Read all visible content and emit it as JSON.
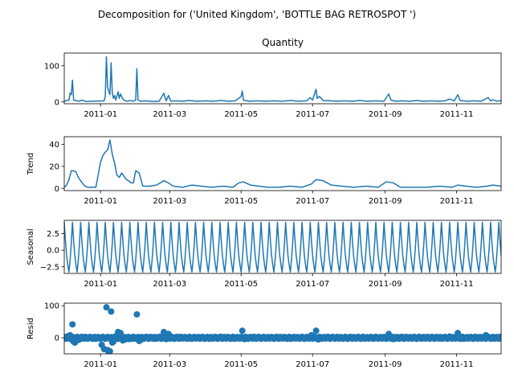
{
  "chart_data": {
    "type": "line",
    "suptitle": "Decomposition for ('United Kingdom', 'BOTTLE BAG RETROSPOT ')",
    "x_range": [
      "2010-12-01",
      "2011-12-09"
    ],
    "x_ticks": [
      "2011-01",
      "2011-03",
      "2011-05",
      "2011-07",
      "2011-09",
      "2011-11"
    ],
    "panels": [
      {
        "key": "observed",
        "title": "Quantity",
        "ylabel": "",
        "kind": "line",
        "ylim": [
          -5,
          135
        ],
        "yticks": [
          0,
          100
        ],
        "ytick_labels": [
          "0",
          "100"
        ],
        "points": [
          [
            "2010-12-01",
            2
          ],
          [
            "2010-12-03",
            4
          ],
          [
            "2010-12-05",
            5
          ],
          [
            "2010-12-06",
            25
          ],
          [
            "2010-12-07",
            20
          ],
          [
            "2010-12-08",
            60
          ],
          [
            "2010-12-09",
            5
          ],
          [
            "2010-12-12",
            3
          ],
          [
            "2010-12-14",
            2
          ],
          [
            "2010-12-16",
            5
          ],
          [
            "2010-12-19",
            2
          ],
          [
            "2010-12-21",
            1
          ],
          [
            "2010-12-23",
            2
          ],
          [
            "2011-01-04",
            3
          ],
          [
            "2011-01-05",
            15
          ],
          [
            "2011-01-06",
            125
          ],
          [
            "2011-01-07",
            40
          ],
          [
            "2011-01-09",
            20
          ],
          [
            "2011-01-10",
            108
          ],
          [
            "2011-01-11",
            25
          ],
          [
            "2011-01-12",
            10
          ],
          [
            "2011-01-13",
            18
          ],
          [
            "2011-01-14",
            5
          ],
          [
            "2011-01-16",
            28
          ],
          [
            "2011-01-17",
            10
          ],
          [
            "2011-01-18",
            22
          ],
          [
            "2011-01-20",
            8
          ],
          [
            "2011-01-22",
            3
          ],
          [
            "2011-01-24",
            2
          ],
          [
            "2011-01-26",
            4
          ],
          [
            "2011-01-29",
            2
          ],
          [
            "2011-01-31",
            5
          ],
          [
            "2011-02-01",
            92
          ],
          [
            "2011-02-02",
            5
          ],
          [
            "2011-02-04",
            2
          ],
          [
            "2011-02-08",
            3
          ],
          [
            "2011-02-12",
            2
          ],
          [
            "2011-02-15",
            1
          ],
          [
            "2011-02-20",
            2
          ],
          [
            "2011-02-24",
            24
          ],
          [
            "2011-02-26",
            3
          ],
          [
            "2011-02-28",
            18
          ],
          [
            "2011-03-02",
            2
          ],
          [
            "2011-03-06",
            3
          ],
          [
            "2011-03-12",
            2
          ],
          [
            "2011-03-18",
            4
          ],
          [
            "2011-03-24",
            2
          ],
          [
            "2011-04-01",
            3
          ],
          [
            "2011-04-07",
            2
          ],
          [
            "2011-04-14",
            4
          ],
          [
            "2011-04-20",
            2
          ],
          [
            "2011-04-26",
            3
          ],
          [
            "2011-05-01",
            15
          ],
          [
            "2011-05-02",
            30
          ],
          [
            "2011-05-03",
            5
          ],
          [
            "2011-05-08",
            2
          ],
          [
            "2011-05-15",
            3
          ],
          [
            "2011-05-22",
            2
          ],
          [
            "2011-05-29",
            3
          ],
          [
            "2011-06-05",
            2
          ],
          [
            "2011-06-12",
            4
          ],
          [
            "2011-06-19",
            2
          ],
          [
            "2011-06-26",
            3
          ],
          [
            "2011-06-29",
            12
          ],
          [
            "2011-07-01",
            5
          ],
          [
            "2011-07-04",
            35
          ],
          [
            "2011-07-05",
            10
          ],
          [
            "2011-07-07",
            15
          ],
          [
            "2011-07-10",
            4
          ],
          [
            "2011-07-16",
            3
          ],
          [
            "2011-07-22",
            2
          ],
          [
            "2011-07-28",
            3
          ],
          [
            "2011-08-04",
            2
          ],
          [
            "2011-08-10",
            4
          ],
          [
            "2011-08-17",
            2
          ],
          [
            "2011-08-24",
            3
          ],
          [
            "2011-08-31",
            2
          ],
          [
            "2011-09-04",
            22
          ],
          [
            "2011-09-06",
            5
          ],
          [
            "2011-09-10",
            2
          ],
          [
            "2011-09-16",
            3
          ],
          [
            "2011-09-22",
            2
          ],
          [
            "2011-09-28",
            4
          ],
          [
            "2011-10-04",
            2
          ],
          [
            "2011-10-10",
            3
          ],
          [
            "2011-10-16",
            2
          ],
          [
            "2011-10-22",
            3
          ],
          [
            "2011-10-26",
            8
          ],
          [
            "2011-10-30",
            3
          ],
          [
            "2011-11-02",
            20
          ],
          [
            "2011-11-04",
            4
          ],
          [
            "2011-11-10",
            2
          ],
          [
            "2011-11-16",
            3
          ],
          [
            "2011-11-22",
            2
          ],
          [
            "2011-11-28",
            12
          ],
          [
            "2011-11-30",
            3
          ],
          [
            "2011-12-02",
            6
          ],
          [
            "2011-12-05",
            2
          ],
          [
            "2011-12-09",
            4
          ]
        ]
      },
      {
        "key": "trend",
        "title": "",
        "ylabel": "Trend",
        "kind": "line",
        "ylim": [
          -2,
          47
        ],
        "yticks": [
          0,
          20,
          40
        ],
        "ytick_labels": [
          "0",
          "20",
          "40"
        ],
        "points": [
          [
            "2010-12-01",
            1
          ],
          [
            "2010-12-03",
            3
          ],
          [
            "2010-12-05",
            8
          ],
          [
            "2010-12-07",
            16
          ],
          [
            "2010-12-09",
            16
          ],
          [
            "2010-12-11",
            15
          ],
          [
            "2010-12-13",
            10
          ],
          [
            "2010-12-15",
            7
          ],
          [
            "2010-12-17",
            4
          ],
          [
            "2010-12-19",
            2
          ],
          [
            "2010-12-21",
            1
          ],
          [
            "2010-12-23",
            1
          ],
          [
            "2010-12-28",
            1
          ],
          [
            "2011-01-01",
            24
          ],
          [
            "2011-01-03",
            30
          ],
          [
            "2011-01-05",
            33
          ],
          [
            "2011-01-07",
            35
          ],
          [
            "2011-01-09",
            44
          ],
          [
            "2011-01-11",
            31
          ],
          [
            "2011-01-13",
            23
          ],
          [
            "2011-01-15",
            12
          ],
          [
            "2011-01-17",
            10
          ],
          [
            "2011-01-19",
            14
          ],
          [
            "2011-01-21",
            11
          ],
          [
            "2011-01-23",
            8
          ],
          [
            "2011-01-25",
            7
          ],
          [
            "2011-01-27",
            5
          ],
          [
            "2011-01-29",
            5
          ],
          [
            "2011-01-31",
            16
          ],
          [
            "2011-02-03",
            14
          ],
          [
            "2011-02-06",
            2
          ],
          [
            "2011-02-12",
            2
          ],
          [
            "2011-02-18",
            3
          ],
          [
            "2011-02-24",
            7
          ],
          [
            "2011-02-28",
            5
          ],
          [
            "2011-03-04",
            2
          ],
          [
            "2011-03-12",
            1
          ],
          [
            "2011-03-20",
            3
          ],
          [
            "2011-03-28",
            2
          ],
          [
            "2011-04-06",
            1
          ],
          [
            "2011-04-16",
            2
          ],
          [
            "2011-04-24",
            1
          ],
          [
            "2011-04-29",
            5
          ],
          [
            "2011-05-03",
            6
          ],
          [
            "2011-05-09",
            3
          ],
          [
            "2011-05-16",
            2
          ],
          [
            "2011-05-24",
            1
          ],
          [
            "2011-06-02",
            1
          ],
          [
            "2011-06-12",
            2
          ],
          [
            "2011-06-22",
            1
          ],
          [
            "2011-06-30",
            4
          ],
          [
            "2011-07-04",
            8
          ],
          [
            "2011-07-10",
            7
          ],
          [
            "2011-07-17",
            3
          ],
          [
            "2011-07-26",
            2
          ],
          [
            "2011-08-05",
            1
          ],
          [
            "2011-08-16",
            2
          ],
          [
            "2011-08-26",
            1
          ],
          [
            "2011-09-02",
            6
          ],
          [
            "2011-09-08",
            5
          ],
          [
            "2011-09-14",
            1
          ],
          [
            "2011-09-24",
            1
          ],
          [
            "2011-10-06",
            1
          ],
          [
            "2011-10-18",
            2
          ],
          [
            "2011-10-28",
            1
          ],
          [
            "2011-11-02",
            3
          ],
          [
            "2011-11-09",
            2
          ],
          [
            "2011-11-18",
            1
          ],
          [
            "2011-11-27",
            2
          ],
          [
            "2011-12-02",
            3
          ],
          [
            "2011-12-09",
            2
          ]
        ]
      },
      {
        "key": "seasonal",
        "title": "",
        "ylabel": "Seasonal",
        "kind": "periodic",
        "ylim": [
          -3.5,
          4.5
        ],
        "yticks": [
          -2.5,
          0.0,
          2.5
        ],
        "ytick_labels": [
          "−2.5",
          "0.0",
          "2.5"
        ],
        "period_days": 7,
        "cycle_values": [
          4.2,
          1.5,
          -0.8,
          -2.2,
          -3.3,
          -1.5,
          1.0
        ]
      },
      {
        "key": "resid",
        "title": "",
        "ylabel": "Resid",
        "kind": "scatter",
        "ylim": [
          -50,
          108
        ],
        "yticks": [
          0,
          100
        ],
        "ytick_labels": [
          "0",
          "100"
        ],
        "points": [
          [
            "2010-12-02",
            -2
          ],
          [
            "2010-12-04",
            5
          ],
          [
            "2010-12-06",
            8
          ],
          [
            "2010-12-07",
            -5
          ],
          [
            "2010-12-08",
            42
          ],
          [
            "2010-12-09",
            -12
          ],
          [
            "2010-12-10",
            -15
          ],
          [
            "2010-12-12",
            -8
          ],
          [
            "2010-12-14",
            -5
          ],
          [
            "2010-12-16",
            3
          ],
          [
            "2010-12-19",
            -2
          ],
          [
            "2010-12-22",
            1
          ],
          [
            "2010-12-27",
            -3
          ],
          [
            "2011-01-02",
            -22
          ],
          [
            "2011-01-04",
            -35
          ],
          [
            "2011-01-06",
            95
          ],
          [
            "2011-01-07",
            -38
          ],
          [
            "2011-01-08",
            -45
          ],
          [
            "2011-01-09",
            -42
          ],
          [
            "2011-01-10",
            82
          ],
          [
            "2011-01-11",
            -15
          ],
          [
            "2011-01-12",
            -12
          ],
          [
            "2011-01-14",
            5
          ],
          [
            "2011-01-16",
            18
          ],
          [
            "2011-01-18",
            15
          ],
          [
            "2011-01-20",
            -8
          ],
          [
            "2011-01-22",
            -5
          ],
          [
            "2011-01-25",
            -4
          ],
          [
            "2011-01-28",
            -3
          ],
          [
            "2011-02-01",
            73
          ],
          [
            "2011-02-03",
            -10
          ],
          [
            "2011-02-05",
            -5
          ],
          [
            "2011-02-10",
            2
          ],
          [
            "2011-02-16",
            -3
          ],
          [
            "2011-02-22",
            4
          ],
          [
            "2011-02-24",
            18
          ],
          [
            "2011-02-26",
            -4
          ],
          [
            "2011-02-28",
            12
          ],
          [
            "2011-03-04",
            -2
          ],
          [
            "2011-03-10",
            3
          ],
          [
            "2011-03-18",
            -2
          ],
          [
            "2011-03-26",
            2
          ],
          [
            "2011-04-04",
            -3
          ],
          [
            "2011-04-14",
            3
          ],
          [
            "2011-04-24",
            -2
          ],
          [
            "2011-05-02",
            22
          ],
          [
            "2011-05-04",
            -4
          ],
          [
            "2011-05-12",
            3
          ],
          [
            "2011-05-22",
            -2
          ],
          [
            "2011-06-02",
            2
          ],
          [
            "2011-06-12",
            -3
          ],
          [
            "2011-06-22",
            2
          ],
          [
            "2011-06-30",
            8
          ],
          [
            "2011-07-04",
            22
          ],
          [
            "2011-07-06",
            -5
          ],
          [
            "2011-07-14",
            3
          ],
          [
            "2011-07-24",
            -2
          ],
          [
            "2011-08-04",
            2
          ],
          [
            "2011-08-14",
            -2
          ],
          [
            "2011-08-24",
            3
          ],
          [
            "2011-09-04",
            12
          ],
          [
            "2011-09-08",
            -4
          ],
          [
            "2011-09-18",
            2
          ],
          [
            "2011-09-28",
            -3
          ],
          [
            "2011-10-08",
            2
          ],
          [
            "2011-10-18",
            -2
          ],
          [
            "2011-10-26",
            4
          ],
          [
            "2011-11-02",
            15
          ],
          [
            "2011-11-06",
            -3
          ],
          [
            "2011-11-16",
            2
          ],
          [
            "2011-11-26",
            8
          ],
          [
            "2011-12-02",
            -2
          ],
          [
            "2011-12-08",
            3
          ]
        ]
      }
    ]
  }
}
